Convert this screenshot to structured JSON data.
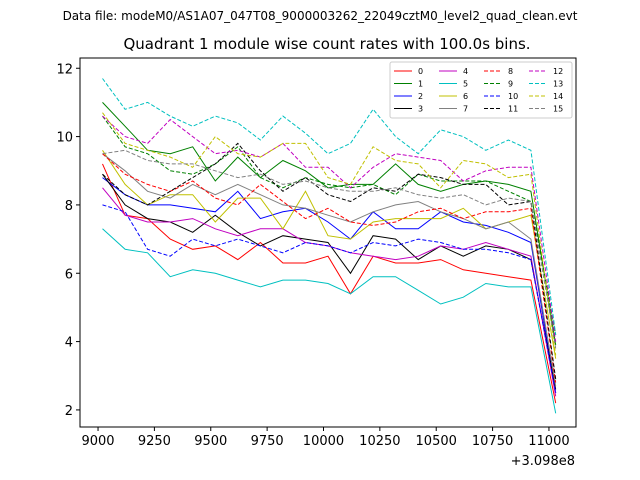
{
  "chart_data": {
    "type": "line",
    "suptitle": "Data file: modeM0/AS1A07_047T08_9000003262_22049cztM0_level2_quad_clean.evt",
    "title": "Quadrant 1 module wise count rates with 100.0s bins.",
    "xlabel": "",
    "ylabel": "",
    "x_offset_label": "+3.098e8",
    "xlim": [
      8920,
      11120
    ],
    "ylim": [
      1.5,
      12.3
    ],
    "x_ticks": [
      9000,
      9250,
      9500,
      9750,
      10000,
      10250,
      10500,
      10750,
      11000
    ],
    "y_ticks": [
      2,
      4,
      6,
      8,
      10,
      12
    ],
    "x": [
      9020,
      9120,
      9220,
      9320,
      9420,
      9520,
      9620,
      9720,
      9820,
      9920,
      10020,
      10120,
      10220,
      10320,
      10420,
      10520,
      10620,
      10720,
      10820,
      10920,
      11030
    ],
    "legend_position": "top-right",
    "series": [
      {
        "name": "0",
        "color": "#ff0000",
        "dash": "solid",
        "values": [
          9.2,
          7.7,
          7.6,
          7.0,
          6.7,
          6.8,
          6.4,
          6.9,
          6.3,
          6.3,
          6.5,
          5.4,
          6.5,
          6.3,
          6.3,
          6.4,
          6.1,
          6.0,
          5.9,
          5.8,
          2.2
        ]
      },
      {
        "name": "1",
        "color": "#008000",
        "dash": "solid",
        "values": [
          11.0,
          10.3,
          9.6,
          9.5,
          9.7,
          8.7,
          9.4,
          8.8,
          9.3,
          9.0,
          8.5,
          8.6,
          8.6,
          9.2,
          8.6,
          8.4,
          8.6,
          8.7,
          8.6,
          8.4,
          3.9
        ]
      },
      {
        "name": "2",
        "color": "#0000ff",
        "dash": "solid",
        "values": [
          8.8,
          8.3,
          8.0,
          8.0,
          7.9,
          7.8,
          8.4,
          7.6,
          7.8,
          7.9,
          7.5,
          7.0,
          7.8,
          7.3,
          7.3,
          7.8,
          7.5,
          7.4,
          7.2,
          6.9,
          2.5
        ]
      },
      {
        "name": "3",
        "color": "#000000",
        "dash": "solid",
        "values": [
          8.9,
          8.0,
          7.6,
          7.5,
          7.2,
          7.7,
          7.2,
          6.8,
          7.1,
          7.0,
          6.9,
          6.0,
          7.1,
          7.0,
          6.4,
          6.8,
          6.5,
          6.8,
          6.7,
          6.4,
          2.6
        ]
      },
      {
        "name": "4",
        "color": "#c000c0",
        "dash": "solid",
        "values": [
          8.5,
          7.7,
          7.5,
          7.5,
          7.6,
          7.3,
          7.1,
          7.3,
          7.3,
          6.9,
          6.8,
          6.6,
          6.5,
          6.4,
          6.5,
          6.8,
          6.7,
          6.9,
          6.7,
          6.5,
          2.4
        ]
      },
      {
        "name": "5",
        "color": "#00c0c0",
        "dash": "solid",
        "values": [
          7.3,
          6.7,
          6.6,
          5.9,
          6.1,
          6.0,
          5.8,
          5.6,
          5.8,
          5.8,
          5.7,
          5.4,
          5.9,
          5.9,
          5.5,
          5.1,
          5.3,
          5.7,
          5.6,
          5.6,
          1.9
        ]
      },
      {
        "name": "6",
        "color": "#c0c000",
        "dash": "solid",
        "values": [
          9.6,
          8.6,
          8.0,
          8.3,
          8.3,
          7.5,
          8.2,
          8.2,
          7.3,
          8.4,
          7.1,
          7.0,
          7.5,
          7.6,
          7.6,
          7.6,
          7.9,
          7.3,
          7.5,
          7.7,
          3.5
        ]
      },
      {
        "name": "7",
        "color": "#808080",
        "dash": "solid",
        "values": [
          9.5,
          9.0,
          8.4,
          8.2,
          8.6,
          8.3,
          8.6,
          8.3,
          8.0,
          7.9,
          7.7,
          7.5,
          7.8,
          8.0,
          8.1,
          7.8,
          7.6,
          7.3,
          7.5,
          7.0,
          2.7
        ]
      },
      {
        "name": "8",
        "color": "#ff0000",
        "dash": "dashed",
        "values": [
          9.5,
          8.9,
          8.6,
          8.4,
          8.7,
          8.2,
          8.0,
          8.6,
          8.1,
          7.6,
          7.9,
          7.5,
          7.4,
          7.5,
          7.8,
          7.9,
          7.6,
          7.8,
          7.8,
          7.9,
          2.8
        ]
      },
      {
        "name": "9",
        "color": "#008000",
        "dash": "dashed",
        "values": [
          10.6,
          9.7,
          9.5,
          9.0,
          8.9,
          9.2,
          9.7,
          8.8,
          8.5,
          8.8,
          8.6,
          8.5,
          8.6,
          8.3,
          8.9,
          8.7,
          8.7,
          8.7,
          8.4,
          8.1,
          4.2
        ]
      },
      {
        "name": "10",
        "color": "#0000ff",
        "dash": "dashed",
        "values": [
          8.0,
          7.8,
          6.7,
          6.5,
          7.0,
          6.8,
          7.0,
          6.8,
          6.6,
          6.9,
          6.8,
          6.6,
          6.9,
          6.8,
          7.0,
          6.9,
          6.7,
          6.7,
          6.6,
          6.4,
          2.5
        ]
      },
      {
        "name": "11",
        "color": "#000000",
        "dash": "dashed",
        "values": [
          8.9,
          8.3,
          8.0,
          8.4,
          8.8,
          9.2,
          9.8,
          9.0,
          8.4,
          8.8,
          8.3,
          8.1,
          8.5,
          8.4,
          8.9,
          8.8,
          8.6,
          8.6,
          8.0,
          8.1,
          2.9
        ]
      },
      {
        "name": "12",
        "color": "#c000c0",
        "dash": "dashed",
        "values": [
          10.6,
          10.0,
          9.8,
          10.5,
          10.0,
          9.5,
          9.6,
          9.4,
          9.8,
          9.1,
          9.1,
          8.5,
          9.1,
          9.5,
          9.4,
          9.3,
          8.7,
          9.0,
          9.1,
          9.1,
          4.0
        ]
      },
      {
        "name": "13",
        "color": "#00c0c0",
        "dash": "dashed",
        "values": [
          11.7,
          10.8,
          11.0,
          10.6,
          10.3,
          10.6,
          10.4,
          9.9,
          10.6,
          10.1,
          9.5,
          9.8,
          10.8,
          10.0,
          9.5,
          10.2,
          10.0,
          9.6,
          9.9,
          9.6,
          4.2
        ]
      },
      {
        "name": "14",
        "color": "#c0c000",
        "dash": "dashed",
        "values": [
          10.7,
          9.8,
          9.6,
          9.4,
          9.1,
          10.0,
          9.5,
          9.4,
          9.8,
          9.8,
          8.8,
          8.6,
          9.7,
          9.3,
          9.2,
          8.5,
          9.3,
          9.2,
          8.8,
          8.9,
          3.6
        ]
      },
      {
        "name": "15",
        "color": "#808080",
        "dash": "dashed",
        "values": [
          9.5,
          9.6,
          9.3,
          9.2,
          9.2,
          9.0,
          8.8,
          8.9,
          8.6,
          8.7,
          8.5,
          8.4,
          8.4,
          8.5,
          8.3,
          8.2,
          8.3,
          8.0,
          8.2,
          8.1,
          3.8
        ]
      }
    ]
  }
}
